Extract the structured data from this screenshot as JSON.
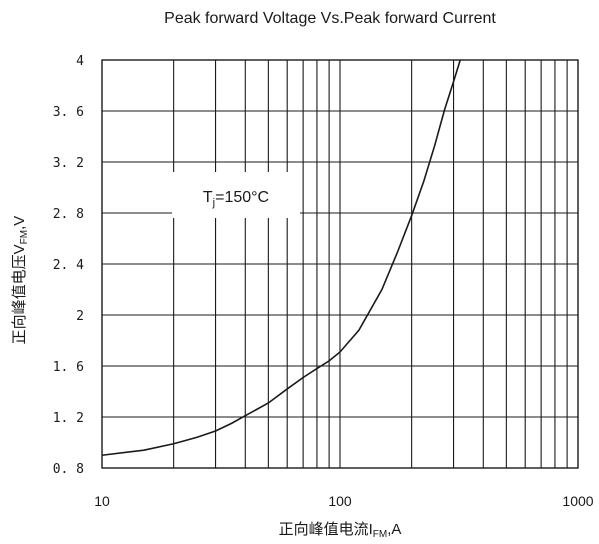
{
  "chart_data": {
    "type": "line",
    "title": "Peak forward Voltage Vs.Peak forward Current",
    "xlabel": {
      "main": "正向峰值电流I",
      "sub": "FM",
      "tail": ",A"
    },
    "ylabel": {
      "main": "正向峰值电压V",
      "sub": "FM",
      "tail": ",V"
    },
    "x_scale": "log",
    "xlim": [
      10,
      1000
    ],
    "ylim": [
      0.8,
      4
    ],
    "grid": true,
    "xticks": [
      10,
      100,
      1000
    ],
    "xtick_labels": [
      "10",
      "100",
      "1000"
    ],
    "yticks": [
      0.8,
      1.2,
      1.6,
      2,
      2.4,
      2.8,
      3.2,
      3.6,
      4
    ],
    "ytick_labels": [
      "0. 8",
      "1. 2",
      "1. 6",
      "2",
      "2. 4",
      "2. 8",
      "3. 2",
      "3. 6",
      "4"
    ],
    "annotation": {
      "main": "T",
      "sub": "j",
      "tail": "=150°C"
    },
    "series": [
      {
        "x": [
          10,
          15,
          20,
          25,
          30,
          35,
          40,
          50,
          60,
          70,
          80,
          90,
          100,
          120,
          150,
          175,
          200,
          225,
          250,
          275,
          300,
          320
        ],
        "y": [
          0.9,
          0.94,
          0.99,
          1.04,
          1.09,
          1.15,
          1.21,
          1.31,
          1.42,
          1.51,
          1.58,
          1.64,
          1.71,
          1.88,
          2.2,
          2.5,
          2.78,
          3.05,
          3.33,
          3.61,
          3.83,
          4.0
        ]
      }
    ],
    "colors": {
      "line": "#1a1a1a",
      "grid": "#1a1a1a"
    }
  }
}
